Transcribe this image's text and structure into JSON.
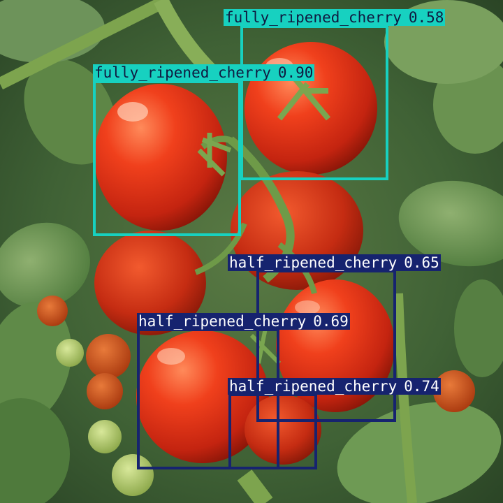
{
  "image": {
    "alt": "",
    "colors": {
      "fully_ripened": "#17d1c0",
      "half_ripened": "#16236f"
    }
  },
  "detections": [
    {
      "label": "fully_ripened_cherry",
      "confidence": "0.58",
      "class": "fully"
    },
    {
      "label": "fully_ripened_cherry",
      "confidence": "0.90",
      "class": "fully"
    },
    {
      "label": "half_ripened_cherry",
      "confidence": "0.65",
      "class": "half"
    },
    {
      "label": "half_ripened_cherry",
      "confidence": "0.69",
      "class": "half"
    },
    {
      "label": "half_ripened_cherry",
      "confidence": "0.74",
      "class": "half"
    }
  ]
}
